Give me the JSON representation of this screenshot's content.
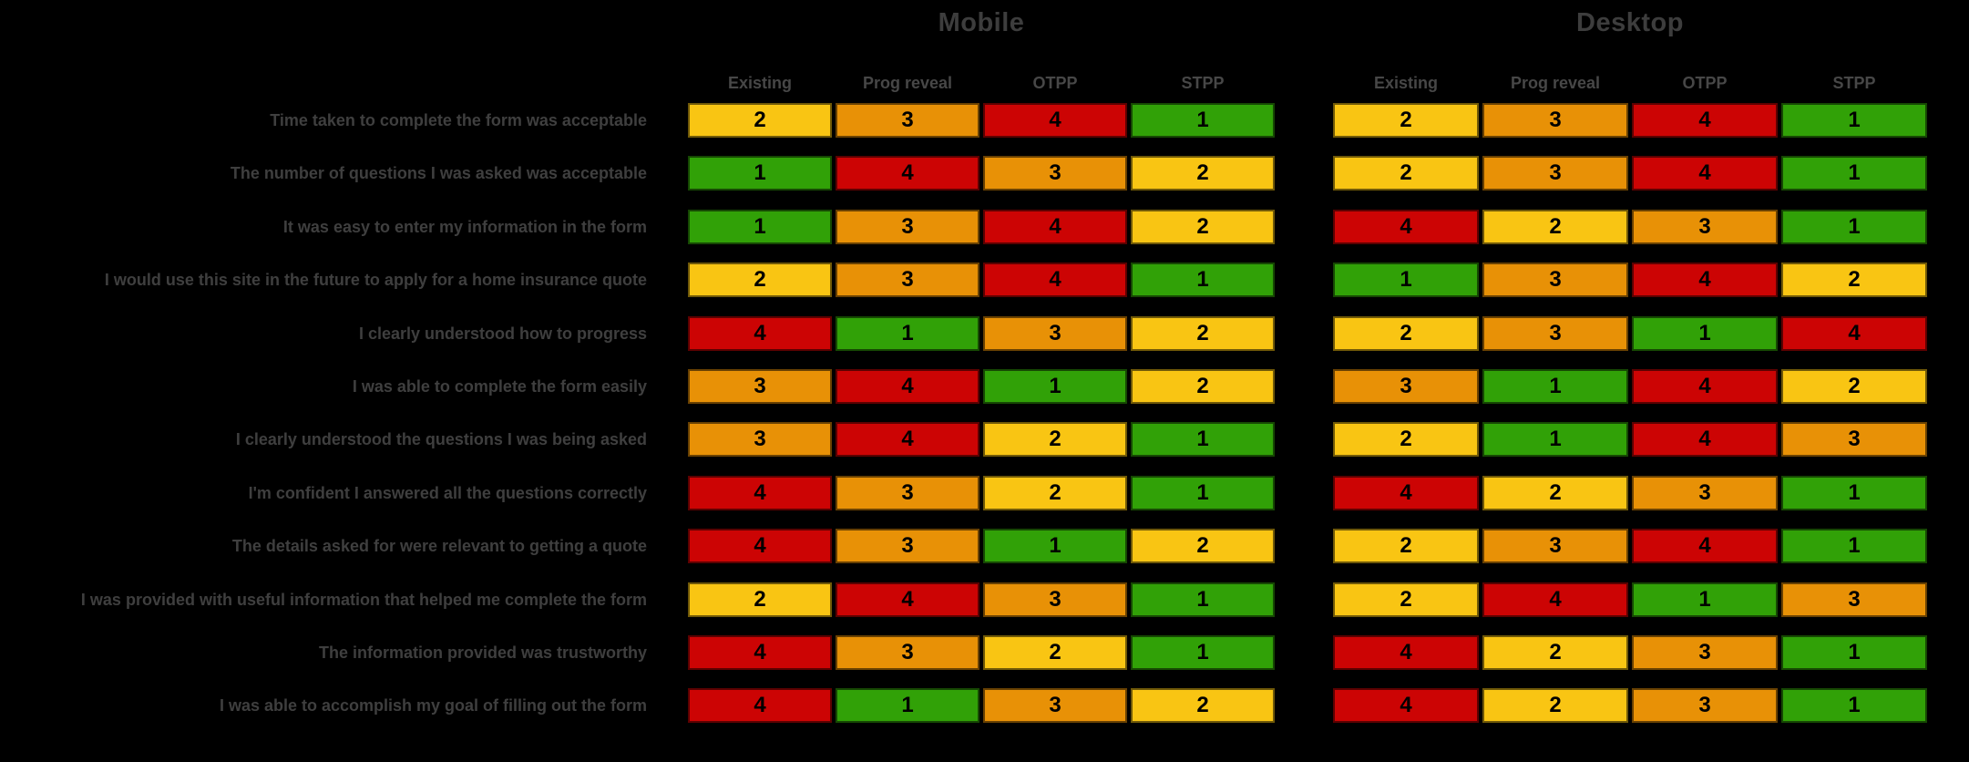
{
  "groups": [
    {
      "title": "Mobile",
      "columns": [
        "Existing",
        "Prog reveal",
        "OTPP",
        "STPP"
      ]
    },
    {
      "title": "Desktop",
      "columns": [
        "Existing",
        "Prog reveal",
        "OTPP",
        "STPP"
      ]
    }
  ],
  "rank_colors": {
    "1": "#31A107",
    "2": "#F9C513",
    "3": "#E89106",
    "4": "#CC0404"
  },
  "text_colors": {
    "title": "#3D3D3D",
    "header": "#474747",
    "label": "#3F3F3F",
    "cell_number": "#000000",
    "background": "#000000"
  },
  "rows": [
    {
      "label": "Time taken to complete the form was acceptable",
      "mobile": [
        2,
        3,
        4,
        1
      ],
      "desktop": [
        2,
        3,
        4,
        1
      ]
    },
    {
      "label": "The number of questions I was asked was acceptable",
      "mobile": [
        1,
        4,
        3,
        2
      ],
      "desktop": [
        2,
        3,
        4,
        1
      ]
    },
    {
      "label": "It was easy to enter my information in the form",
      "mobile": [
        1,
        3,
        4,
        2
      ],
      "desktop": [
        4,
        2,
        3,
        1
      ]
    },
    {
      "label": "I would use this site in the future to apply for a home insurance quote",
      "mobile": [
        2,
        3,
        4,
        1
      ],
      "desktop": [
        1,
        3,
        4,
        2
      ]
    },
    {
      "label": "I clearly understood how to progress",
      "mobile": [
        4,
        1,
        3,
        2
      ],
      "desktop": [
        2,
        3,
        1,
        4
      ]
    },
    {
      "label": "I was able to complete the form easily",
      "mobile": [
        3,
        4,
        1,
        2
      ],
      "desktop": [
        3,
        1,
        4,
        2
      ]
    },
    {
      "label": "I clearly understood the questions I was being asked",
      "mobile": [
        3,
        4,
        2,
        1
      ],
      "desktop": [
        2,
        1,
        4,
        3
      ]
    },
    {
      "label": "I'm confident I answered all the questions correctly",
      "mobile": [
        4,
        3,
        2,
        1
      ],
      "desktop": [
        4,
        2,
        3,
        1
      ]
    },
    {
      "label": "The details asked for were relevant to getting a quote",
      "mobile": [
        4,
        3,
        1,
        2
      ],
      "desktop": [
        2,
        3,
        4,
        1
      ]
    },
    {
      "label": "I was provided with useful information that helped me complete the form",
      "mobile": [
        2,
        4,
        3,
        1
      ],
      "desktop": [
        2,
        4,
        1,
        3
      ]
    },
    {
      "label": "The information provided was trustworthy",
      "mobile": [
        4,
        3,
        2,
        1
      ],
      "desktop": [
        4,
        2,
        3,
        1
      ]
    },
    {
      "label": "I was able to accomplish my goal of filling out the form",
      "mobile": [
        4,
        1,
        3,
        2
      ],
      "desktop": [
        4,
        2,
        3,
        1
      ]
    }
  ],
  "chart_data": {
    "type": "heatmap",
    "title": "",
    "column_groups": [
      "Mobile",
      "Desktop"
    ],
    "columns": [
      "Existing",
      "Prog reveal",
      "OTPP",
      "STPP"
    ],
    "row_labels": [
      "Time taken to complete the form was acceptable",
      "The number of questions I was asked was acceptable",
      "It was easy to enter my information in the form",
      "I would use this site in the future to apply for a home insurance quote",
      "I clearly understood how to progress",
      "I was able to complete the form easily",
      "I clearly understood the questions I was being asked",
      "I'm confident I answered all the questions correctly",
      "The details asked for were relevant to getting a quote",
      "I was provided with useful information that helped me complete the form",
      "The information provided was trustworthy",
      "I was able to accomplish my goal of filling out the form"
    ],
    "series": [
      {
        "name": "Mobile",
        "values": [
          [
            2,
            3,
            4,
            1
          ],
          [
            1,
            4,
            3,
            2
          ],
          [
            1,
            3,
            4,
            2
          ],
          [
            2,
            3,
            4,
            1
          ],
          [
            4,
            1,
            3,
            2
          ],
          [
            3,
            4,
            1,
            2
          ],
          [
            3,
            4,
            2,
            1
          ],
          [
            4,
            3,
            2,
            1
          ],
          [
            4,
            3,
            1,
            2
          ],
          [
            2,
            4,
            3,
            1
          ],
          [
            4,
            3,
            2,
            1
          ],
          [
            4,
            1,
            3,
            2
          ]
        ]
      },
      {
        "name": "Desktop",
        "values": [
          [
            2,
            3,
            4,
            1
          ],
          [
            2,
            3,
            4,
            1
          ],
          [
            4,
            2,
            3,
            1
          ],
          [
            1,
            3,
            4,
            2
          ],
          [
            2,
            3,
            1,
            4
          ],
          [
            3,
            1,
            4,
            2
          ],
          [
            2,
            1,
            4,
            3
          ],
          [
            4,
            2,
            3,
            1
          ],
          [
            2,
            3,
            4,
            1
          ],
          [
            2,
            4,
            1,
            3
          ],
          [
            4,
            2,
            3,
            1
          ],
          [
            4,
            2,
            3,
            1
          ]
        ]
      }
    ],
    "value_range": [
      1,
      4
    ],
    "color_scale": {
      "1": "#31A107",
      "2": "#F9C513",
      "3": "#E89106",
      "4": "#CC0404"
    },
    "grid": false,
    "legend_position": "none"
  }
}
